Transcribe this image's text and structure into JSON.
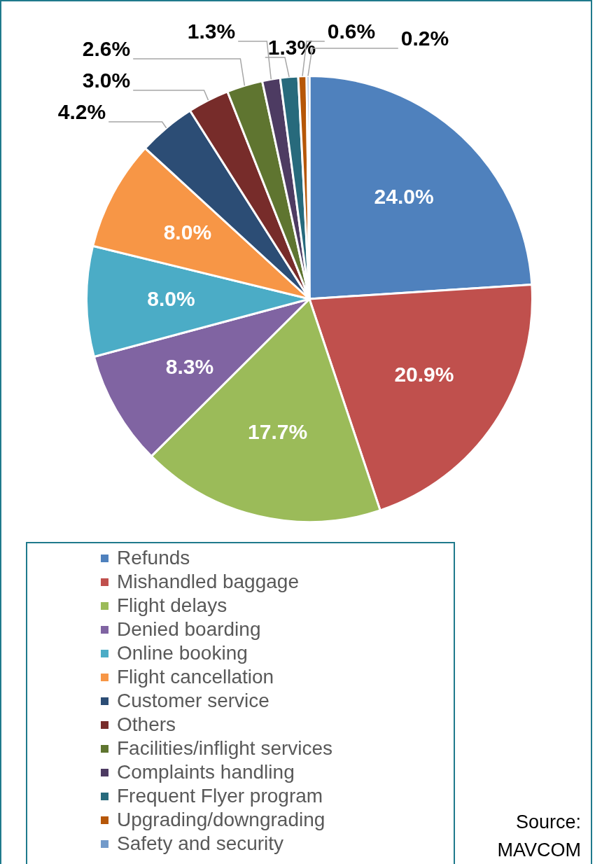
{
  "chart_data": {
    "type": "pie",
    "categories": [
      "Refunds",
      "Mishandled baggage",
      "Flight delays",
      "Denied boarding",
      "Online booking",
      "Flight cancellation",
      "Customer service",
      "Others",
      "Facilities/inflight services",
      "Complaints handling",
      "Frequent Flyer program",
      "Upgrading/downgrading",
      "Safety and security"
    ],
    "values": [
      24.0,
      20.9,
      17.7,
      8.3,
      8.0,
      8.0,
      4.2,
      3.0,
      2.6,
      1.3,
      1.3,
      0.6,
      0.2
    ],
    "colors": [
      "#4f81bd",
      "#c0504d",
      "#9bbb59",
      "#8064a2",
      "#4bacc6",
      "#f79646",
      "#2c4d75",
      "#772c2a",
      "#5f7530",
      "#4d3b62",
      "#276a7c",
      "#b65708",
      "#729aca"
    ],
    "value_labels": [
      "24.0%",
      "20.9%",
      "17.7%",
      "8.3%",
      "8.0%",
      "8.0%",
      "4.2%",
      "3.0%",
      "2.6%",
      "1.3%",
      "1.3%",
      "0.6%",
      "0.2%"
    ],
    "legend": "bottom",
    "annotations": [
      "Source: MAVCOM"
    ]
  }
}
